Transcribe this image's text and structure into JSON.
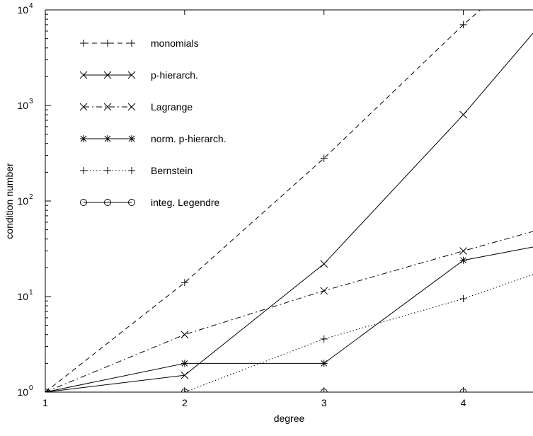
{
  "chart_data": {
    "type": "line",
    "title": "",
    "xlabel": "degree",
    "ylabel": "condition number",
    "x_scale": "linear",
    "y_scale": "log",
    "xlim": [
      1,
      4.5
    ],
    "ylim": [
      1,
      10000
    ],
    "x_ticks": [
      {
        "value": 1,
        "label": "1"
      },
      {
        "value": 2,
        "label": "2"
      },
      {
        "value": 3,
        "label": "3"
      },
      {
        "value": 4,
        "label": "4"
      }
    ],
    "y_ticks": [
      {
        "value": 1,
        "base": "10",
        "exp": "0"
      },
      {
        "value": 10,
        "base": "10",
        "exp": "1"
      },
      {
        "value": 100,
        "base": "10",
        "exp": "2"
      },
      {
        "value": 1000,
        "base": "10",
        "exp": "3"
      },
      {
        "value": 10000,
        "base": "10",
        "exp": "4"
      }
    ],
    "grid": false,
    "legend_position": "top-left",
    "series": [
      {
        "name": "monomials",
        "marker": "plus",
        "line": "dashed",
        "x": [
          1,
          2,
          3,
          4,
          4.5
        ],
        "y": [
          1,
          14,
          280,
          7000,
          30000
        ],
        "markers_at": [
          1,
          2,
          3,
          4
        ]
      },
      {
        "name": "p-hierarch.",
        "marker": "x",
        "line": "solid",
        "x": [
          1,
          2,
          3,
          4,
          4.5
        ],
        "y": [
          1,
          1.5,
          22,
          800,
          5700
        ],
        "markers_at": [
          1,
          2,
          3,
          4
        ]
      },
      {
        "name": "Lagrange",
        "marker": "x",
        "line": "dashdot",
        "x": [
          1,
          2,
          3,
          4,
          4.5
        ],
        "y": [
          1,
          4,
          11.5,
          30,
          48
        ],
        "markers_at": [
          1,
          2,
          3,
          4
        ]
      },
      {
        "name": "norm. p-hierarch.",
        "marker": "star",
        "line": "solid",
        "x": [
          1,
          2,
          3,
          4,
          4.5
        ],
        "y": [
          1,
          2,
          2,
          24,
          33
        ],
        "markers_at": [
          1,
          2,
          3,
          4
        ]
      },
      {
        "name": "Bernstein",
        "marker": "plus",
        "line": "dotted",
        "x": [
          1,
          2,
          3,
          4,
          4.5
        ],
        "y": [
          1,
          1,
          3.6,
          9.5,
          17
        ],
        "markers_at": [
          1,
          2,
          3,
          4
        ]
      },
      {
        "name": "integ. Legendre",
        "marker": "circle",
        "line": "solid",
        "x": [
          1,
          2,
          3,
          4,
          4.5
        ],
        "y": [
          1,
          1,
          1,
          1,
          1
        ],
        "markers_at": [
          1,
          2,
          3,
          4
        ]
      }
    ]
  }
}
